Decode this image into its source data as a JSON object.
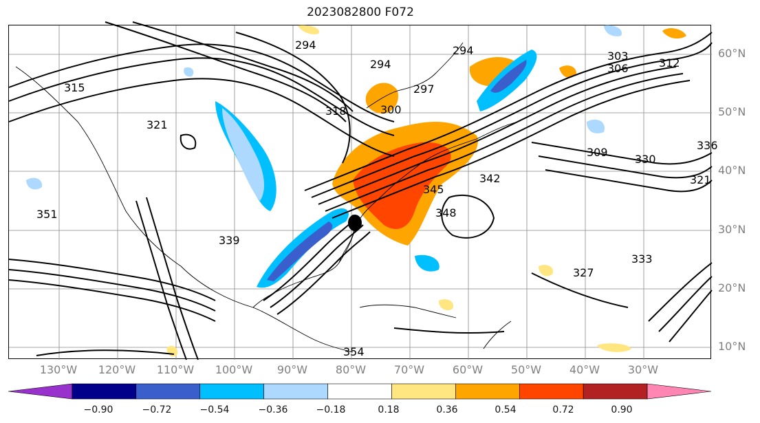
{
  "title": "2023082800 F072",
  "lat_labels": [
    "60°N",
    "50°N",
    "40°N",
    "30°N",
    "20°N",
    "10°N"
  ],
  "lon_labels": [
    "130°W",
    "120°W",
    "110°W",
    "100°W",
    "90°W",
    "80°W",
    "70°W",
    "60°W",
    "50°W",
    "40°W",
    "30°W"
  ],
  "contour_labels": [
    "294",
    "294",
    "294",
    "297",
    "300",
    "303",
    "306",
    "312",
    "315",
    "309",
    "318",
    "321",
    "321",
    "327",
    "330",
    "333",
    "336",
    "339",
    "342",
    "345",
    "348",
    "351",
    "354"
  ],
  "colorbar": {
    "ticks": [
      "−0.90",
      "−0.72",
      "−0.54",
      "−0.36",
      "−0.18",
      "0.18",
      "0.36",
      "0.54",
      "0.72",
      "0.90"
    ],
    "colors": [
      "#9932cc",
      "#00008b",
      "#3a5fcd",
      "#00bfff",
      "#add8ff",
      "#ffffff",
      "#ffe680",
      "#ffa500",
      "#ff4500",
      "#b22222",
      "#ff85b3"
    ],
    "extend": "both"
  }
}
